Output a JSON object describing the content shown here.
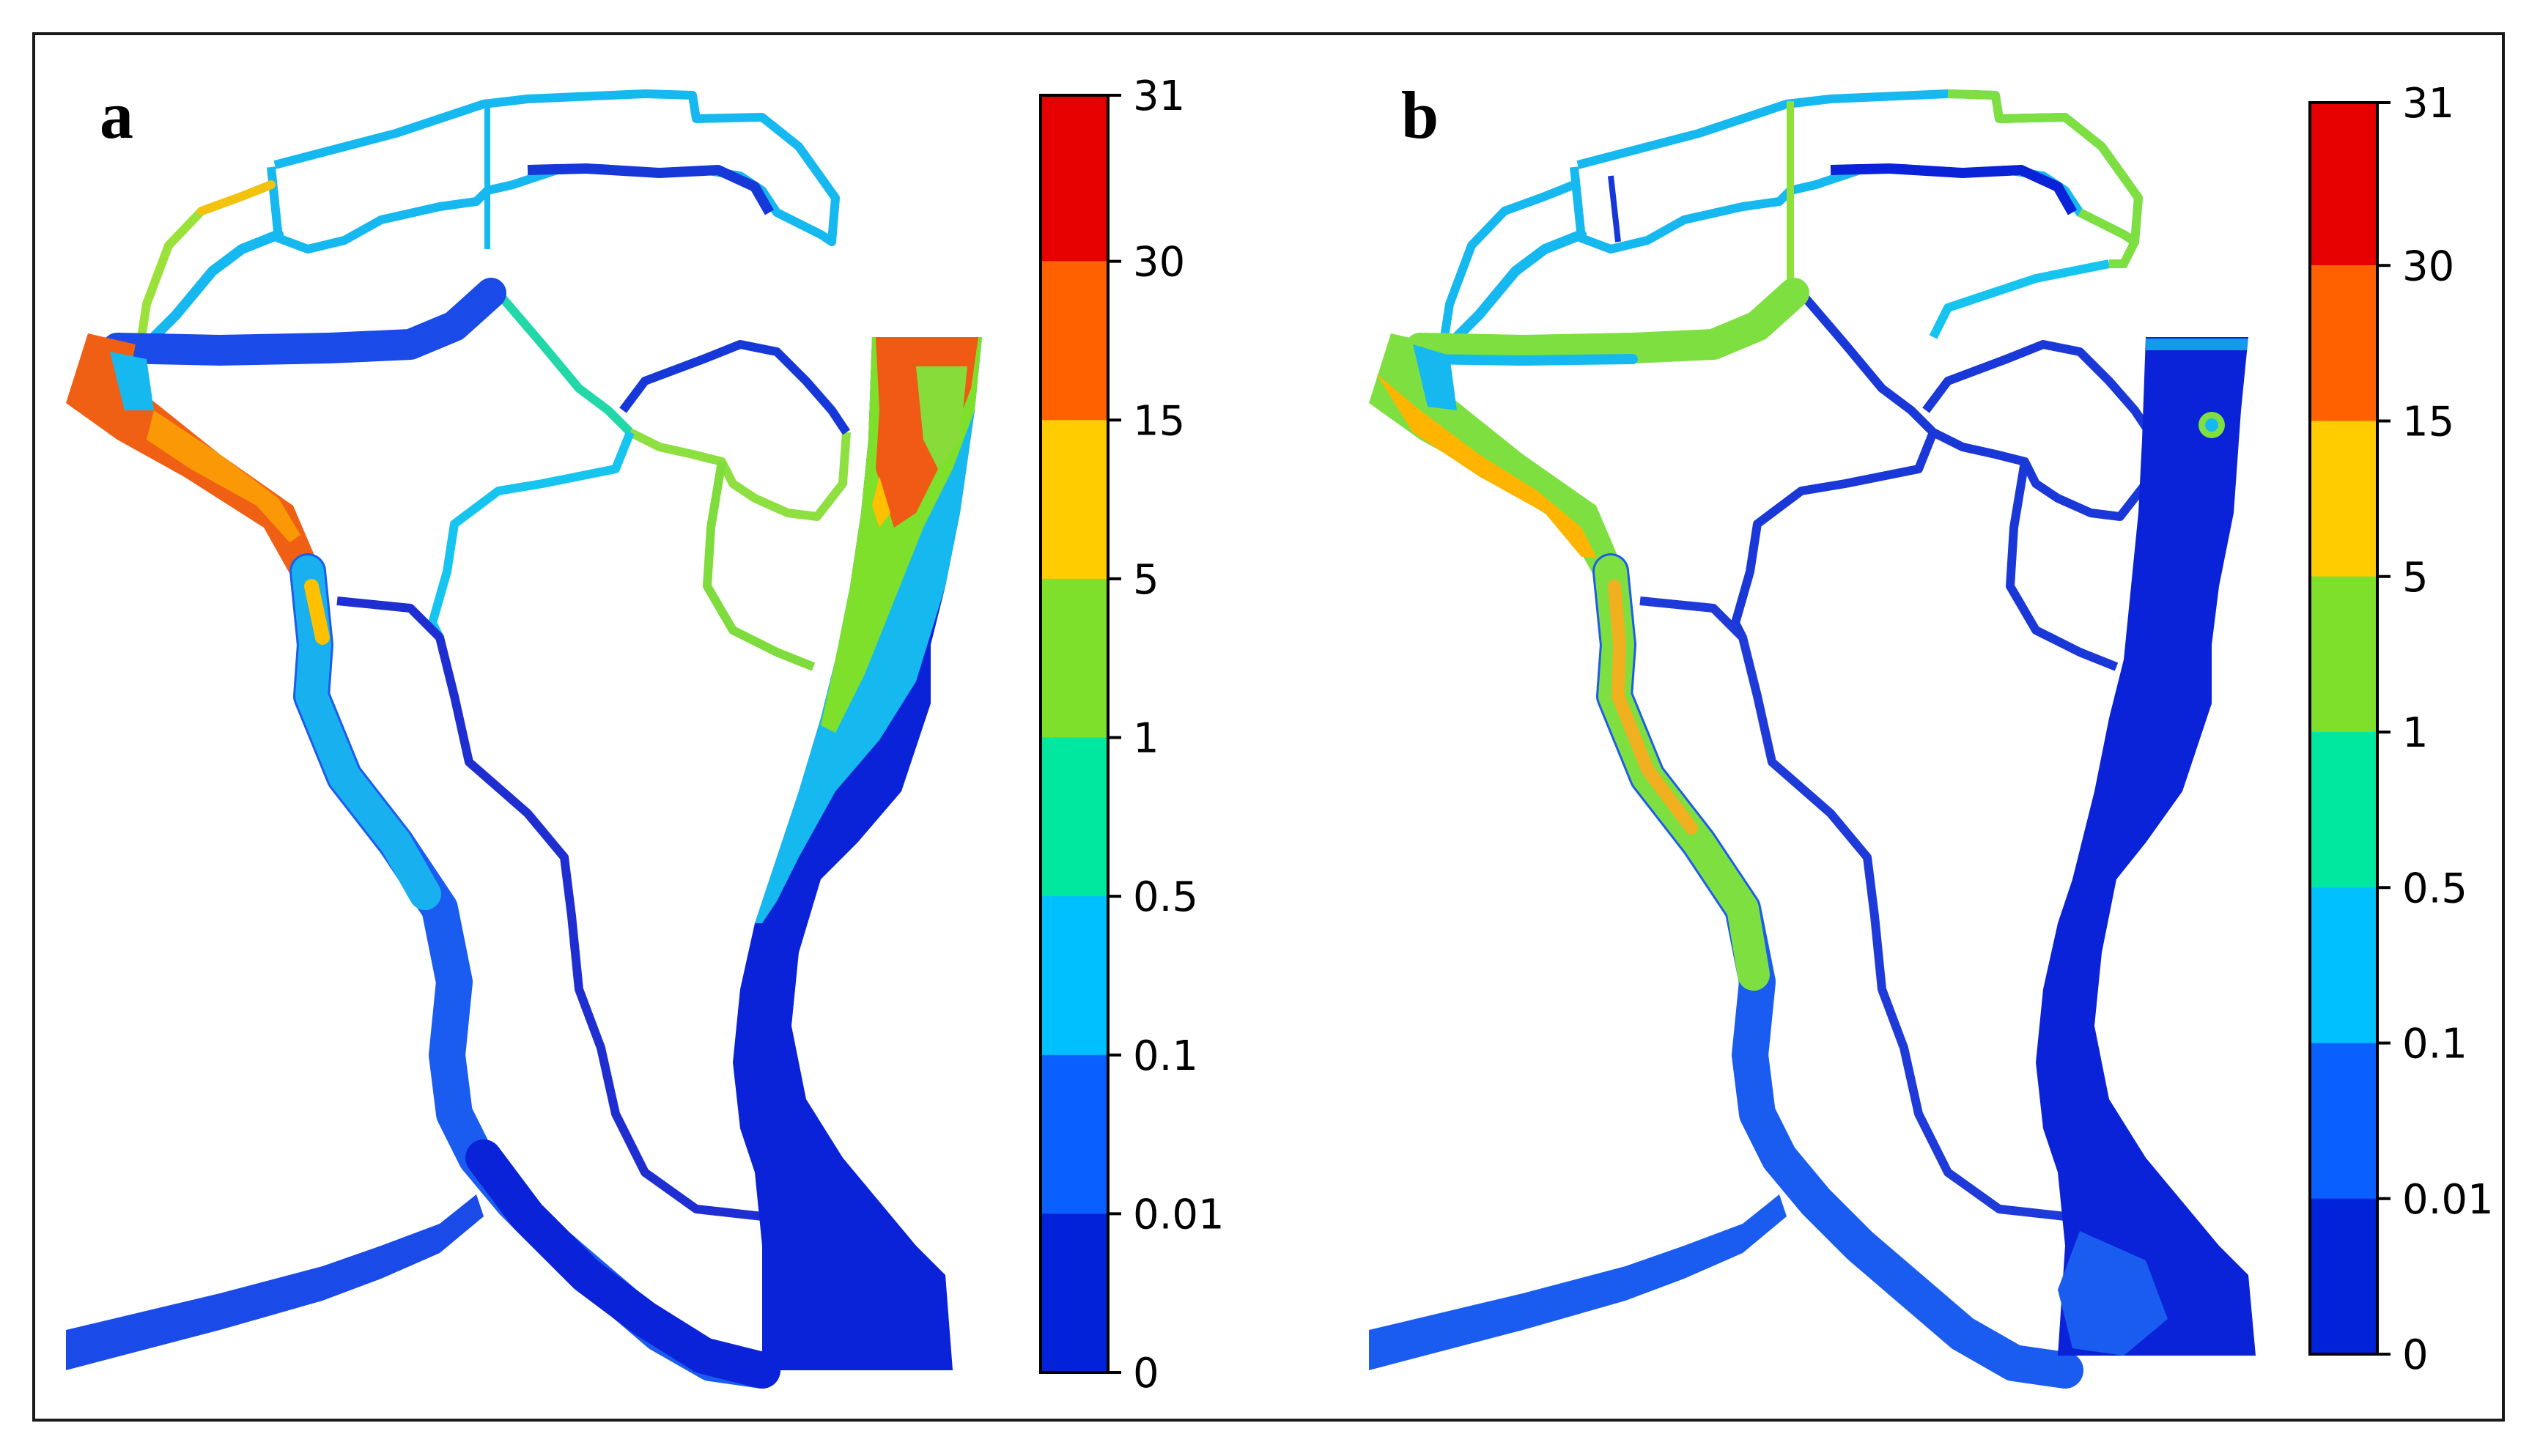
{
  "panels": [
    {
      "label": "a",
      "colorbar_ticks": [
        "31",
        "30",
        "15",
        "5",
        "1",
        "0.5",
        "0.1",
        "0.01",
        "0"
      ],
      "colorbar_colors": [
        "#e60000",
        "#ff6000",
        "#ffcc00",
        "#7ee02a",
        "#00e8a0",
        "#00c0ff",
        "#0a60ff",
        "#0022d8"
      ]
    },
    {
      "label": "b",
      "colorbar_ticks": [
        "31",
        "30",
        "15",
        "5",
        "1",
        "0.5",
        "0.1",
        "0.01",
        "0"
      ],
      "colorbar_colors": [
        "#e60000",
        "#ff6000",
        "#ffcc00",
        "#7ee02a",
        "#00e8a0",
        "#00c0ff",
        "#0a60ff",
        "#0022d8"
      ]
    }
  ]
}
